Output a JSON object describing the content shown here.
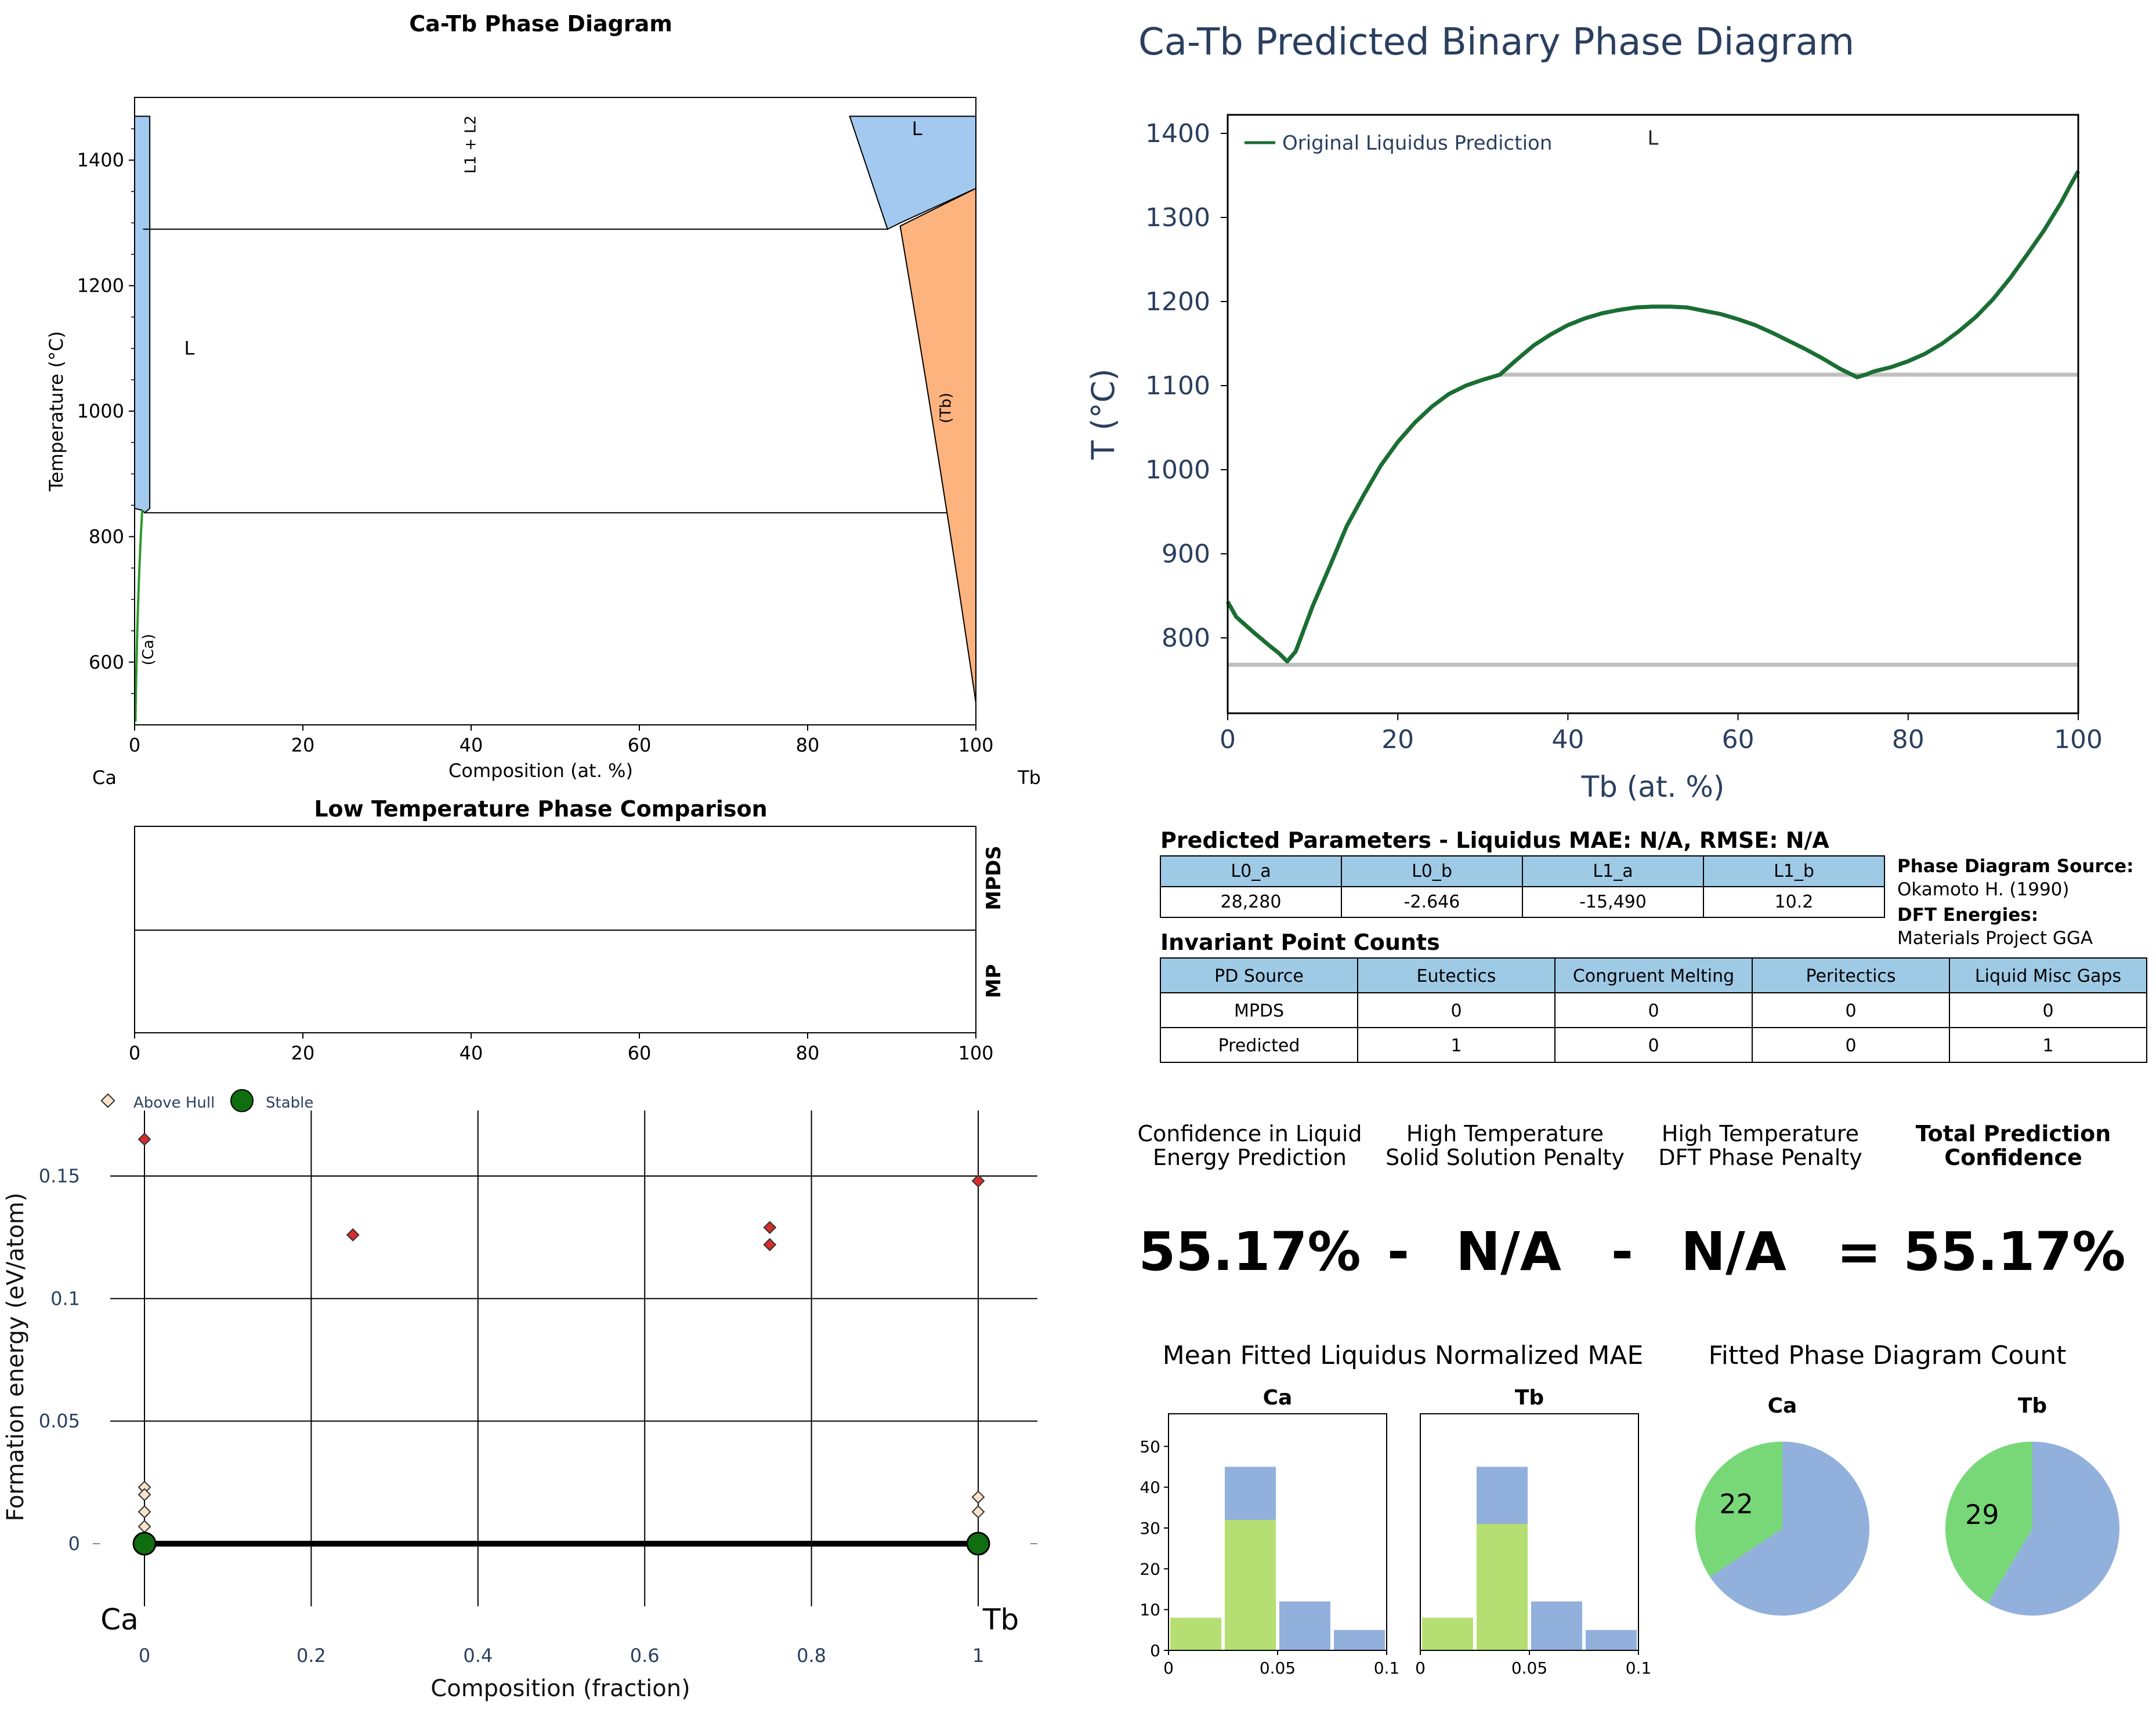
{
  "chart_data": [
    {
      "type": "area",
      "title": "Ca-Tb Phase Diagram",
      "xlabel": "Composition (at. %)",
      "ylabel": "Temperature (°C)",
      "xlim": [
        0,
        100
      ],
      "ylim": [
        500,
        1500
      ],
      "x_ticks": [
        0,
        20,
        40,
        60,
        80,
        100
      ],
      "y_ticks": [
        600,
        800,
        1000,
        1200,
        1400
      ],
      "element_left": "Ca",
      "element_right": "Tb",
      "region_labels": [
        {
          "text": "L",
          "x": 6.5,
          "y": 1090
        },
        {
          "text": "L",
          "x": 93,
          "y": 1440
        },
        {
          "text": "L1 + L2",
          "x": 40.5,
          "y": 1425
        },
        {
          "text": "(Tb)",
          "x": 97,
          "y": 1005
        },
        {
          "text": "(Ca)",
          "x": 2.2,
          "y": 620
        }
      ],
      "invariant_lines": [
        {
          "x1": 1.0,
          "x2": 89.5,
          "y": 1290
        },
        {
          "x1": 1.2,
          "x2": 96.5,
          "y": 838
        }
      ],
      "liquid_boxes": [
        {
          "x1": 0,
          "x2": 1.8,
          "y1": 845,
          "y2": 1470,
          "color": "#a3c9f0"
        }
      ]
    },
    {
      "type": "line",
      "title": "Ca-Tb Predicted Binary Phase Diagram",
      "xlabel": "Tb (at. %)",
      "ylabel": "T (°C)",
      "xlim": [
        0,
        100
      ],
      "ylim": [
        710,
        1425
      ],
      "x_ticks": [
        0,
        20,
        40,
        60,
        80,
        100
      ],
      "y_ticks": [
        800,
        900,
        1000,
        1100,
        1200,
        1300,
        1400
      ],
      "region_labels": [
        {
          "text": "L",
          "x": 50,
          "y": 1395
        }
      ],
      "series": [
        {
          "name": "Original Liquidus Prediction",
          "color": "#1b6e33",
          "x": [
            0,
            1,
            3,
            5,
            6,
            7,
            8,
            10,
            12,
            14,
            16,
            18,
            20,
            22,
            24,
            26,
            28,
            30,
            32,
            34,
            36,
            38,
            40,
            42,
            44,
            46,
            48,
            50,
            52,
            54,
            56,
            58,
            60,
            62,
            64,
            66,
            68,
            70,
            72,
            74,
            75,
            76,
            78,
            80,
            82,
            84,
            86,
            88,
            90,
            92,
            94,
            96,
            98,
            99,
            100
          ],
          "y": [
            843,
            825,
            807,
            790,
            782,
            772,
            784,
            838,
            885,
            933,
            970,
            1005,
            1033,
            1056,
            1075,
            1090,
            1100,
            1107,
            1113,
            1131,
            1148,
            1161,
            1172,
            1180,
            1186,
            1190,
            1193,
            1194,
            1194,
            1193,
            1189,
            1185,
            1179,
            1172,
            1163,
            1153,
            1143,
            1132,
            1120,
            1110,
            1113,
            1117,
            1122,
            1129,
            1138,
            1150,
            1165,
            1182,
            1203,
            1228,
            1256,
            1285,
            1318,
            1337,
            1355
          ]
        }
      ],
      "hlines": [
        768,
        1113
      ]
    },
    {
      "type": "bar",
      "title": "Low Temperature Phase Comparison",
      "rows": [
        "MPDS",
        "MP"
      ],
      "xlim": [
        0,
        100
      ],
      "x_ticks": [
        0,
        20,
        40,
        60,
        80,
        100
      ]
    },
    {
      "type": "scatter",
      "xlabel": "Composition (fraction)",
      "ylabel": "Formation energy (eV/atom)",
      "xlim": [
        -0.04,
        1.07
      ],
      "ylim": [
        -0.04,
        0.18
      ],
      "x_ticks": [
        "0",
        "0.2",
        "0.4",
        "0.6",
        "0.8",
        "1"
      ],
      "y_ticks": [
        "0",
        "0.05",
        "0.1",
        "0.15"
      ],
      "element_left": "Ca",
      "element_right": "Tb",
      "legend": [
        "Above Hull",
        "Stable"
      ],
      "stable": [
        {
          "x": 0,
          "y": 0
        },
        {
          "x": 1,
          "y": 0
        }
      ],
      "above_hull_near": [
        {
          "x": 0,
          "y": 0.023
        },
        {
          "x": 0,
          "y": 0.02
        },
        {
          "x": 0,
          "y": 0.013
        },
        {
          "x": 0,
          "y": 0.007
        },
        {
          "x": 1,
          "y": 0.019
        },
        {
          "x": 1,
          "y": 0.013
        }
      ],
      "above_hull_far": [
        {
          "x": 0,
          "y": 0.165
        },
        {
          "x": 0.25,
          "y": 0.126
        },
        {
          "x": 0.75,
          "y": 0.129
        },
        {
          "x": 0.75,
          "y": 0.122
        },
        {
          "x": 1,
          "y": 0.148
        }
      ]
    },
    {
      "type": "bar",
      "title": "Ca",
      "x_ticks": [
        "0",
        "0.05",
        "0.1"
      ],
      "y_ticks": [
        0,
        10,
        20,
        30,
        40,
        50
      ],
      "xlim": [
        0,
        0.1
      ],
      "ylim": [
        0,
        58
      ],
      "bins": [
        [
          0,
          0.025
        ],
        [
          0.025,
          0.05
        ],
        [
          0.05,
          0.075
        ],
        [
          0.075,
          0.1
        ]
      ],
      "series": [
        {
          "values": [
            0,
            45,
            12,
            5
          ],
          "color": "#92b0dc"
        },
        {
          "values": [
            8,
            32,
            0,
            0
          ],
          "color": "#b5df72"
        }
      ]
    },
    {
      "type": "bar",
      "title": "Tb",
      "x_ticks": [
        "0",
        "0.05",
        "0.1"
      ],
      "xlim": [
        0,
        0.1
      ],
      "ylim": [
        0,
        58
      ],
      "bins": [
        [
          0,
          0.025
        ],
        [
          0.025,
          0.05
        ],
        [
          0.05,
          0.075
        ],
        [
          0.075,
          0.1
        ]
      ],
      "series": [
        {
          "values": [
            0,
            45,
            12,
            5
          ],
          "color": "#92b0dc"
        },
        {
          "values": [
            8,
            31,
            0,
            0
          ],
          "color": "#b5df72"
        }
      ]
    },
    {
      "type": "pie",
      "title": "Ca",
      "slices": [
        {
          "value": 22,
          "label": "22",
          "color": "#78d878"
        },
        {
          "value": 42,
          "label": "",
          "color": "#92b0dc"
        }
      ]
    },
    {
      "type": "pie",
      "title": "Tb",
      "slices": [
        {
          "value": 29,
          "label": "29",
          "color": "#78d878"
        },
        {
          "value": 41,
          "label": "",
          "color": "#92b0dc"
        }
      ]
    }
  ],
  "params": {
    "title": "Predicted Parameters - Liquidus MAE: N/A, RMSE: N/A",
    "headers": [
      "L0_a",
      "L0_b",
      "L1_a",
      "L1_b"
    ],
    "values": [
      "28,280",
      "-2.646",
      "-15,490",
      "10.2"
    ]
  },
  "sources": {
    "pd_label": "Phase Diagram Source:",
    "pd_value": "Okamoto H. (1990)",
    "dft_label": "DFT Energies:",
    "dft_value": "Materials Project GGA"
  },
  "invariants": {
    "title": "Invariant Point Counts",
    "headers": [
      "PD Source",
      "Eutectics",
      "Congruent Melting",
      "Peritectics",
      "Liquid Misc Gaps"
    ],
    "rows": [
      [
        "MPDS",
        "0",
        "0",
        "0",
        "0"
      ],
      [
        "Predicted",
        "1",
        "0",
        "0",
        "1"
      ]
    ]
  },
  "confidence": {
    "labels": [
      [
        "Confidence in Liquid",
        "Energy Prediction"
      ],
      [
        "High Temperature",
        "Solid Solution Penalty"
      ],
      [
        "High Temperature",
        "DFT Phase Penalty"
      ],
      [
        "Total Prediction",
        "Confidence"
      ]
    ],
    "values": [
      "55.17%",
      "-",
      "N/A",
      "-",
      "N/A",
      "=",
      "55.17%"
    ]
  },
  "hist_title": "Mean Fitted Liquidus Normalized MAE",
  "pie_title": "Fitted Phase Diagram Count",
  "colors": {
    "liquid_blue": "#a3c9f0",
    "tb_orange": "#fcb37e",
    "ca_green": "#2a9c2a",
    "curve_green": "#1b6e33",
    "hull_grey": "#c0c0c0",
    "header_blue": "#9ecae6",
    "navy": "#2a3f5f",
    "stable_green": "#0f6e0f",
    "diamond_red": "#d62d2d",
    "diamond_pale": "#fbe3cb"
  }
}
